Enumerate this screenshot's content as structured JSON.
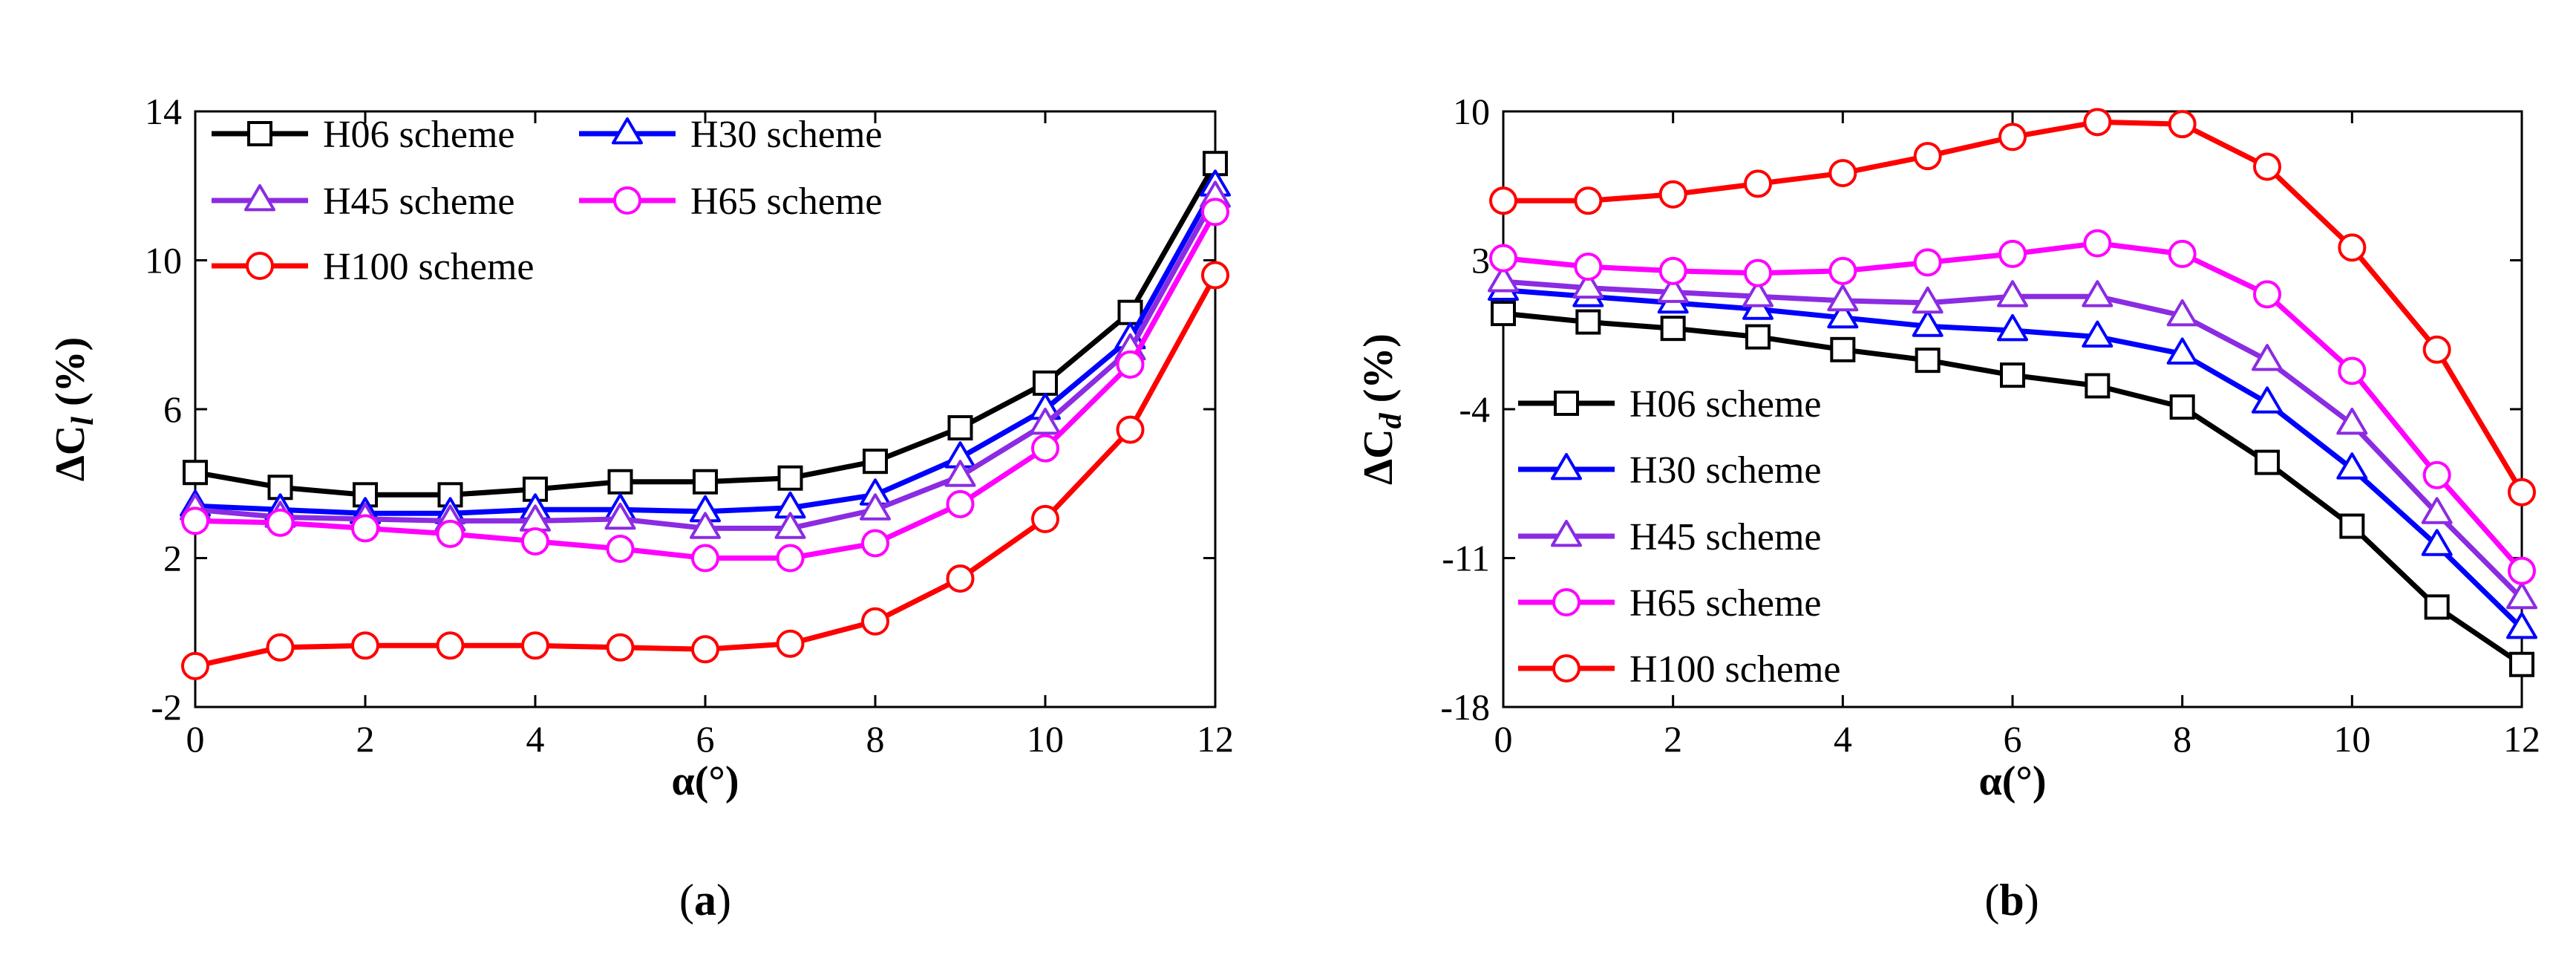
{
  "chart_data": [
    {
      "type": "line",
      "panel_label": "a",
      "xlabel": "α(°)",
      "ylabel_main": "ΔC",
      "ylabel_sub": "l",
      "ylabel_unit": " (%)",
      "x": [
        0,
        1,
        2,
        3,
        4,
        5,
        6,
        7,
        8,
        9,
        10,
        11,
        12
      ],
      "xlim": [
        0,
        12
      ],
      "ylim": [
        -2,
        14
      ],
      "xticks": [
        0,
        2,
        4,
        6,
        8,
        10,
        12
      ],
      "yticks": [
        -2,
        2,
        6,
        10,
        14
      ],
      "legend_placement": "top-left, two columns",
      "series": [
        {
          "name": "H06 scheme",
          "color": "#000000",
          "marker": "square",
          "values": [
            4.3,
            3.9,
            3.7,
            3.7,
            3.85,
            4.05,
            4.05,
            4.15,
            4.6,
            5.5,
            6.7,
            8.6,
            12.6
          ]
        },
        {
          "name": "H30 scheme",
          "color": "#0000ff",
          "marker": "triangle",
          "values": [
            3.4,
            3.3,
            3.2,
            3.2,
            3.3,
            3.3,
            3.25,
            3.35,
            3.7,
            4.7,
            6.0,
            7.9,
            12.0
          ]
        },
        {
          "name": "H45 scheme",
          "color": "#8b2be2",
          "marker": "triangle",
          "values": [
            3.3,
            3.1,
            3.05,
            3.0,
            3.0,
            3.05,
            2.8,
            2.8,
            3.3,
            4.2,
            5.6,
            7.6,
            11.7
          ]
        },
        {
          "name": "H65 scheme",
          "color": "#ff00ff",
          "marker": "circle",
          "values": [
            3.0,
            2.95,
            2.8,
            2.65,
            2.45,
            2.25,
            2.0,
            2.0,
            2.4,
            3.45,
            4.95,
            7.2,
            11.3
          ]
        },
        {
          "name": "H100 scheme",
          "color": "#ff0000",
          "marker": "circle",
          "values": [
            -0.9,
            -0.4,
            -0.35,
            -0.35,
            -0.35,
            -0.4,
            -0.45,
            -0.3,
            0.3,
            1.45,
            3.05,
            5.45,
            9.6
          ]
        }
      ]
    },
    {
      "type": "line",
      "panel_label": "b",
      "xlabel": "α(°)",
      "ylabel_main": "ΔC",
      "ylabel_sub": "d",
      "ylabel_unit": " (%)",
      "x": [
        0,
        1,
        2,
        3,
        4,
        5,
        6,
        7,
        8,
        9,
        10,
        11,
        12
      ],
      "xlim": [
        0,
        12
      ],
      "ylim": [
        -18,
        10
      ],
      "xticks": [
        0,
        2,
        4,
        6,
        8,
        10,
        12
      ],
      "yticks": [
        -18,
        -11,
        -4,
        3,
        10
      ],
      "legend_placement": "bottom-left, one column",
      "series": [
        {
          "name": "H06 scheme",
          "color": "#000000",
          "marker": "square",
          "values": [
            0.5,
            0.1,
            -0.2,
            -0.6,
            -1.2,
            -1.7,
            -2.4,
            -2.9,
            -3.9,
            -6.5,
            -9.5,
            -13.3,
            -16.0
          ]
        },
        {
          "name": "H30 scheme",
          "color": "#0000ff",
          "marker": "triangle",
          "values": [
            1.6,
            1.3,
            1.0,
            0.7,
            0.3,
            -0.1,
            -0.3,
            -0.6,
            -1.4,
            -3.7,
            -6.8,
            -10.4,
            -14.3
          ]
        },
        {
          "name": "H45 scheme",
          "color": "#8b2be2",
          "marker": "triangle",
          "values": [
            2.0,
            1.7,
            1.5,
            1.3,
            1.1,
            1.0,
            1.3,
            1.3,
            0.4,
            -1.7,
            -4.7,
            -8.9,
            -12.9
          ]
        },
        {
          "name": "H65 scheme",
          "color": "#ff00ff",
          "marker": "circle",
          "values": [
            3.1,
            2.7,
            2.5,
            2.4,
            2.5,
            2.9,
            3.3,
            3.8,
            3.3,
            1.4,
            -2.2,
            -7.1,
            -11.6
          ]
        },
        {
          "name": "H100 scheme",
          "color": "#ff0000",
          "marker": "circle",
          "values": [
            5.8,
            5.8,
            6.1,
            6.6,
            7.1,
            7.9,
            8.8,
            9.5,
            9.4,
            7.4,
            3.6,
            -1.2,
            -7.9
          ]
        }
      ]
    }
  ]
}
